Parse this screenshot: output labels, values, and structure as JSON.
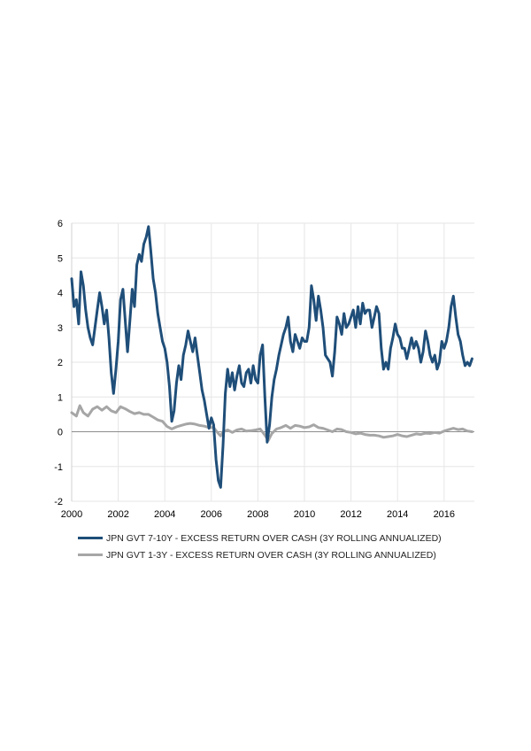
{
  "chart_data": {
    "type": "line",
    "title": "",
    "xlabel": "",
    "ylabel": "",
    "xlim": [
      2000,
      2017.3
    ],
    "ylim": [
      -2,
      6
    ],
    "x_ticks": [
      "2000",
      "2002",
      "2004",
      "2006",
      "2008",
      "2010",
      "2012",
      "2014",
      "2016"
    ],
    "y_ticks": [
      "-2",
      "-1",
      "0",
      "1",
      "2",
      "3",
      "4",
      "5",
      "6"
    ],
    "grid": true,
    "legend_position": "bottom-left",
    "series": [
      {
        "name": "JPN GVT 7-10Y - EXCESS RETURN OVER CASH (3Y ROLLING ANNUALIZED)",
        "color": "#1f4e79",
        "points": [
          [
            2000.0,
            4.4
          ],
          [
            2000.1,
            3.6
          ],
          [
            2000.2,
            3.8
          ],
          [
            2000.3,
            3.1
          ],
          [
            2000.4,
            4.6
          ],
          [
            2000.5,
            4.2
          ],
          [
            2000.6,
            3.5
          ],
          [
            2000.7,
            3.0
          ],
          [
            2000.8,
            2.7
          ],
          [
            2000.9,
            2.5
          ],
          [
            2001.0,
            3.0
          ],
          [
            2001.1,
            3.5
          ],
          [
            2001.2,
            4.0
          ],
          [
            2001.3,
            3.6
          ],
          [
            2001.4,
            3.1
          ],
          [
            2001.5,
            3.5
          ],
          [
            2001.6,
            2.7
          ],
          [
            2001.7,
            1.7
          ],
          [
            2001.8,
            1.1
          ],
          [
            2001.9,
            1.8
          ],
          [
            2002.0,
            2.6
          ],
          [
            2002.1,
            3.8
          ],
          [
            2002.2,
            4.1
          ],
          [
            2002.3,
            3.2
          ],
          [
            2002.4,
            2.3
          ],
          [
            2002.5,
            3.2
          ],
          [
            2002.6,
            4.1
          ],
          [
            2002.7,
            3.6
          ],
          [
            2002.8,
            4.8
          ],
          [
            2002.9,
            5.1
          ],
          [
            2003.0,
            4.9
          ],
          [
            2003.1,
            5.4
          ],
          [
            2003.2,
            5.6
          ],
          [
            2003.3,
            5.9
          ],
          [
            2003.4,
            5.2
          ],
          [
            2003.5,
            4.4
          ],
          [
            2003.6,
            4.0
          ],
          [
            2003.7,
            3.4
          ],
          [
            2003.8,
            3.0
          ],
          [
            2003.9,
            2.6
          ],
          [
            2004.0,
            2.4
          ],
          [
            2004.1,
            2.0
          ],
          [
            2004.2,
            1.3
          ],
          [
            2004.3,
            0.3
          ],
          [
            2004.4,
            0.6
          ],
          [
            2004.5,
            1.4
          ],
          [
            2004.6,
            1.9
          ],
          [
            2004.7,
            1.5
          ],
          [
            2004.8,
            2.2
          ],
          [
            2004.9,
            2.5
          ],
          [
            2005.0,
            2.9
          ],
          [
            2005.1,
            2.6
          ],
          [
            2005.2,
            2.3
          ],
          [
            2005.3,
            2.7
          ],
          [
            2005.4,
            2.2
          ],
          [
            2005.5,
            1.7
          ],
          [
            2005.6,
            1.2
          ],
          [
            2005.7,
            0.9
          ],
          [
            2005.8,
            0.5
          ],
          [
            2005.9,
            0.1
          ],
          [
            2006.0,
            0.4
          ],
          [
            2006.1,
            0.2
          ],
          [
            2006.2,
            -0.8
          ],
          [
            2006.3,
            -1.4
          ],
          [
            2006.4,
            -1.6
          ],
          [
            2006.5,
            -0.4
          ],
          [
            2006.6,
            1.1
          ],
          [
            2006.7,
            1.8
          ],
          [
            2006.8,
            1.3
          ],
          [
            2006.9,
            1.7
          ],
          [
            2007.0,
            1.2
          ],
          [
            2007.1,
            1.6
          ],
          [
            2007.2,
            1.9
          ],
          [
            2007.3,
            1.4
          ],
          [
            2007.4,
            1.3
          ],
          [
            2007.5,
            1.7
          ],
          [
            2007.6,
            1.8
          ],
          [
            2007.7,
            1.4
          ],
          [
            2007.8,
            1.9
          ],
          [
            2007.9,
            1.5
          ],
          [
            2008.0,
            1.4
          ],
          [
            2008.1,
            2.2
          ],
          [
            2008.2,
            2.5
          ],
          [
            2008.3,
            1.0
          ],
          [
            2008.4,
            -0.3
          ],
          [
            2008.5,
            0.2
          ],
          [
            2008.6,
            1.0
          ],
          [
            2008.7,
            1.5
          ],
          [
            2008.8,
            1.8
          ],
          [
            2008.9,
            2.2
          ],
          [
            2009.0,
            2.5
          ],
          [
            2009.1,
            2.8
          ],
          [
            2009.2,
            3.0
          ],
          [
            2009.3,
            3.3
          ],
          [
            2009.4,
            2.6
          ],
          [
            2009.5,
            2.3
          ],
          [
            2009.6,
            2.8
          ],
          [
            2009.7,
            2.6
          ],
          [
            2009.8,
            2.4
          ],
          [
            2009.9,
            2.7
          ],
          [
            2010.0,
            2.6
          ],
          [
            2010.1,
            2.6
          ],
          [
            2010.2,
            3.0
          ],
          [
            2010.3,
            4.2
          ],
          [
            2010.4,
            3.8
          ],
          [
            2010.5,
            3.2
          ],
          [
            2010.6,
            3.9
          ],
          [
            2010.7,
            3.5
          ],
          [
            2010.8,
            3.0
          ],
          [
            2010.9,
            2.2
          ],
          [
            2011.0,
            2.1
          ],
          [
            2011.1,
            2.0
          ],
          [
            2011.2,
            1.6
          ],
          [
            2011.3,
            2.3
          ],
          [
            2011.4,
            3.3
          ],
          [
            2011.5,
            3.1
          ],
          [
            2011.6,
            2.8
          ],
          [
            2011.7,
            3.4
          ],
          [
            2011.8,
            3.0
          ],
          [
            2011.9,
            3.1
          ],
          [
            2012.0,
            3.3
          ],
          [
            2012.1,
            3.5
          ],
          [
            2012.2,
            3.0
          ],
          [
            2012.3,
            3.6
          ],
          [
            2012.4,
            3.1
          ],
          [
            2012.5,
            3.7
          ],
          [
            2012.6,
            3.4
          ],
          [
            2012.7,
            3.5
          ],
          [
            2012.8,
            3.5
          ],
          [
            2012.9,
            3.0
          ],
          [
            2013.0,
            3.3
          ],
          [
            2013.1,
            3.6
          ],
          [
            2013.2,
            3.4
          ],
          [
            2013.3,
            2.4
          ],
          [
            2013.4,
            1.8
          ],
          [
            2013.5,
            2.0
          ],
          [
            2013.6,
            1.8
          ],
          [
            2013.7,
            2.4
          ],
          [
            2013.8,
            2.7
          ],
          [
            2013.9,
            3.1
          ],
          [
            2014.0,
            2.8
          ],
          [
            2014.1,
            2.7
          ],
          [
            2014.2,
            2.4
          ],
          [
            2014.3,
            2.4
          ],
          [
            2014.4,
            2.1
          ],
          [
            2014.5,
            2.4
          ],
          [
            2014.6,
            2.7
          ],
          [
            2014.7,
            2.4
          ],
          [
            2014.8,
            2.6
          ],
          [
            2014.9,
            2.4
          ],
          [
            2015.0,
            2.0
          ],
          [
            2015.1,
            2.3
          ],
          [
            2015.2,
            2.9
          ],
          [
            2015.3,
            2.6
          ],
          [
            2015.4,
            2.2
          ],
          [
            2015.5,
            2.0
          ],
          [
            2015.6,
            2.2
          ],
          [
            2015.7,
            1.8
          ],
          [
            2015.8,
            2.0
          ],
          [
            2015.9,
            2.6
          ],
          [
            2016.0,
            2.4
          ],
          [
            2016.1,
            2.6
          ],
          [
            2016.2,
            3.0
          ],
          [
            2016.3,
            3.6
          ],
          [
            2016.4,
            3.9
          ],
          [
            2016.5,
            3.3
          ],
          [
            2016.6,
            2.8
          ],
          [
            2016.7,
            2.6
          ],
          [
            2016.8,
            2.2
          ],
          [
            2016.9,
            1.9
          ],
          [
            2017.0,
            2.0
          ],
          [
            2017.1,
            1.9
          ],
          [
            2017.2,
            2.1
          ]
        ]
      },
      {
        "name": "JPN GVT 1-3Y - EXCESS RETURN OVER CASH (3Y ROLLING ANNUALIZED)",
        "color": "#a6a6a6",
        "points": [
          [
            2000.0,
            0.55
          ],
          [
            2000.2,
            0.45
          ],
          [
            2000.35,
            0.75
          ],
          [
            2000.5,
            0.55
          ],
          [
            2000.7,
            0.45
          ],
          [
            2000.9,
            0.65
          ],
          [
            2001.1,
            0.72
          ],
          [
            2001.3,
            0.62
          ],
          [
            2001.5,
            0.72
          ],
          [
            2001.7,
            0.6
          ],
          [
            2001.9,
            0.55
          ],
          [
            2002.1,
            0.72
          ],
          [
            2002.3,
            0.66
          ],
          [
            2002.5,
            0.58
          ],
          [
            2002.7,
            0.52
          ],
          [
            2002.9,
            0.55
          ],
          [
            2003.1,
            0.5
          ],
          [
            2003.3,
            0.5
          ],
          [
            2003.5,
            0.42
          ],
          [
            2003.7,
            0.34
          ],
          [
            2003.9,
            0.3
          ],
          [
            2004.1,
            0.15
          ],
          [
            2004.3,
            0.08
          ],
          [
            2004.5,
            0.14
          ],
          [
            2004.7,
            0.18
          ],
          [
            2004.9,
            0.22
          ],
          [
            2005.1,
            0.24
          ],
          [
            2005.3,
            0.22
          ],
          [
            2005.5,
            0.18
          ],
          [
            2005.7,
            0.16
          ],
          [
            2005.9,
            0.12
          ],
          [
            2006.1,
            0.12
          ],
          [
            2006.3,
            -0.05
          ],
          [
            2006.4,
            -0.12
          ],
          [
            2006.5,
            0.0
          ],
          [
            2006.7,
            0.05
          ],
          [
            2006.9,
            -0.02
          ],
          [
            2007.1,
            0.05
          ],
          [
            2007.3,
            0.08
          ],
          [
            2007.5,
            0.02
          ],
          [
            2007.7,
            0.03
          ],
          [
            2007.9,
            0.05
          ],
          [
            2008.1,
            0.08
          ],
          [
            2008.3,
            -0.1
          ],
          [
            2008.45,
            -0.25
          ],
          [
            2008.6,
            -0.05
          ],
          [
            2008.8,
            0.08
          ],
          [
            2009.0,
            0.12
          ],
          [
            2009.2,
            0.18
          ],
          [
            2009.4,
            0.1
          ],
          [
            2009.6,
            0.18
          ],
          [
            2009.8,
            0.16
          ],
          [
            2010.0,
            0.12
          ],
          [
            2010.2,
            0.14
          ],
          [
            2010.4,
            0.2
          ],
          [
            2010.6,
            0.12
          ],
          [
            2010.8,
            0.1
          ],
          [
            2011.0,
            0.05
          ],
          [
            2011.2,
            0.0
          ],
          [
            2011.4,
            0.08
          ],
          [
            2011.6,
            0.06
          ],
          [
            2011.8,
            0.0
          ],
          [
            2012.0,
            -0.02
          ],
          [
            2012.2,
            -0.06
          ],
          [
            2012.4,
            -0.04
          ],
          [
            2012.6,
            -0.08
          ],
          [
            2012.8,
            -0.1
          ],
          [
            2013.0,
            -0.1
          ],
          [
            2013.2,
            -0.12
          ],
          [
            2013.4,
            -0.16
          ],
          [
            2013.6,
            -0.14
          ],
          [
            2013.8,
            -0.12
          ],
          [
            2014.0,
            -0.08
          ],
          [
            2014.2,
            -0.12
          ],
          [
            2014.4,
            -0.14
          ],
          [
            2014.6,
            -0.1
          ],
          [
            2014.8,
            -0.06
          ],
          [
            2015.0,
            -0.08
          ],
          [
            2015.2,
            -0.04
          ],
          [
            2015.4,
            -0.05
          ],
          [
            2015.6,
            -0.02
          ],
          [
            2015.8,
            -0.04
          ],
          [
            2016.0,
            0.02
          ],
          [
            2016.2,
            0.06
          ],
          [
            2016.4,
            0.1
          ],
          [
            2016.6,
            0.06
          ],
          [
            2016.8,
            0.08
          ],
          [
            2017.0,
            0.02
          ],
          [
            2017.2,
            0.0
          ]
        ]
      }
    ]
  }
}
